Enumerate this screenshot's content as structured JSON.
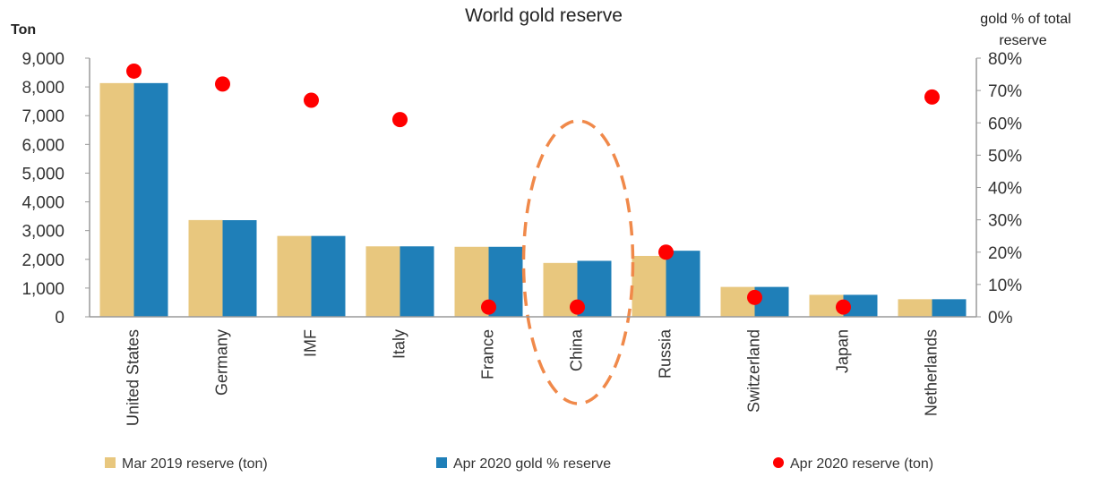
{
  "chart_data": {
    "type": "bar",
    "title": "World gold reserve",
    "ylabel": "Ton",
    "y2label_lines": [
      "gold % of total",
      "reserve"
    ],
    "ylim": [
      0,
      9000
    ],
    "y2lim": [
      0,
      80
    ],
    "yticks": [
      "0",
      "1,000",
      "2,000",
      "3,000",
      "4,000",
      "5,000",
      "6,000",
      "7,000",
      "8,000",
      "9,000"
    ],
    "y2ticks": [
      "0%",
      "10%",
      "20%",
      "30%",
      "40%",
      "50%",
      "60%",
      "70%",
      "80%"
    ],
    "categories": [
      "United States",
      "Germany",
      "IMF",
      "Italy",
      "France",
      "China",
      "Russia",
      "Switzerland",
      "Japan",
      "Netherlands"
    ],
    "series": [
      {
        "name": "Mar 2019 reserve (ton)",
        "kind": "bar",
        "axis": "left",
        "color": "#E8C77E",
        "values": [
          8133,
          3367,
          2814,
          2452,
          2436,
          1874,
          2119,
          1040,
          765,
          612
        ]
      },
      {
        "name": "Apr 2020 gold % reserve",
        "kind": "bar",
        "axis": "left",
        "color": "#1F7FB8",
        "values": [
          8133,
          3363,
          2814,
          2452,
          2436,
          1948,
          2299,
          1040,
          765,
          612
        ]
      },
      {
        "name": "Apr 2020 reserve (ton)",
        "kind": "scatter",
        "axis": "right",
        "color": "#FF0000",
        "values": [
          76,
          72,
          67,
          61,
          3,
          3,
          20,
          6,
          3,
          68
        ]
      }
    ],
    "legend_position": "bottom",
    "grid": false,
    "annotation": {
      "shape": "dashed-ellipse",
      "category": "China",
      "color": "#F0894A"
    }
  }
}
